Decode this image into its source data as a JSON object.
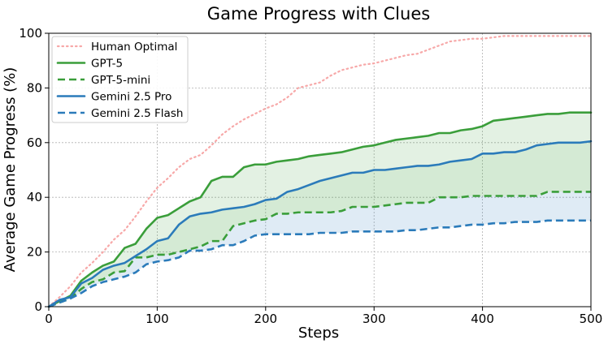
{
  "chart_data": {
    "type": "line",
    "title": "Game Progress with Clues",
    "xlabel": "Steps",
    "ylabel": "Average Game Progress (%)",
    "xlim": [
      0,
      500
    ],
    "ylim": [
      0,
      100
    ],
    "xticks": [
      0,
      100,
      200,
      300,
      400,
      500
    ],
    "yticks": [
      0,
      20,
      40,
      60,
      80,
      100
    ],
    "grid": true,
    "legend_position": "top-left",
    "x": [
      0,
      10,
      20,
      30,
      40,
      50,
      60,
      70,
      80,
      90,
      100,
      110,
      120,
      130,
      140,
      150,
      160,
      170,
      180,
      190,
      200,
      210,
      220,
      230,
      240,
      250,
      260,
      270,
      280,
      290,
      300,
      310,
      320,
      330,
      340,
      350,
      360,
      370,
      380,
      390,
      400,
      410,
      420,
      430,
      440,
      450,
      460,
      470,
      480,
      490,
      500
    ],
    "series": [
      {
        "name": "Human Optimal",
        "color": "#f7a8a8",
        "style": "dotted",
        "values": [
          0,
          3.5,
          7.5,
          12.5,
          16,
          20,
          24.5,
          28,
          33,
          38.5,
          43.5,
          47,
          51,
          54,
          55.5,
          59,
          63,
          66,
          68.5,
          70.5,
          72.5,
          74,
          76.5,
          80,
          81,
          82,
          84.5,
          86.5,
          87.5,
          88.5,
          89,
          90,
          91,
          92,
          92.5,
          94,
          95.5,
          97,
          97.5,
          98,
          98,
          98.5,
          99,
          99,
          99,
          99,
          99,
          99,
          99,
          99,
          99
        ]
      },
      {
        "name": "GPT-5",
        "color": "#3a9e3a",
        "style": "solid",
        "values": [
          0,
          2,
          4,
          9.5,
          12.5,
          15,
          16.5,
          21.5,
          23,
          28.5,
          32.5,
          33.5,
          36,
          38.5,
          40,
          46,
          47.5,
          47.5,
          51,
          52,
          52,
          53,
          53.5,
          54,
          55,
          55.5,
          56,
          56.5,
          57.5,
          58.5,
          59,
          60,
          61,
          61.5,
          62,
          62.5,
          63.5,
          63.5,
          64.5,
          65,
          66,
          68,
          68.5,
          69,
          69.5,
          70,
          70.5,
          70.5,
          71,
          71,
          71
        ]
      },
      {
        "name": "GPT-5-mini",
        "color": "#3a9e3a",
        "style": "dashed",
        "values": [
          0,
          1.5,
          3,
          6.5,
          9,
          10,
          12.5,
          13,
          18,
          18,
          19,
          19,
          20,
          21,
          22,
          24,
          24,
          29.5,
          30.5,
          31.5,
          32,
          34,
          34,
          34.5,
          34.5,
          34.5,
          34.5,
          35,
          36.5,
          36.5,
          36.5,
          37,
          37.5,
          38,
          38,
          38,
          40,
          40,
          40,
          40.5,
          40.5,
          40.5,
          40.5,
          40.5,
          40.5,
          40.5,
          42,
          42,
          42,
          42,
          42
        ]
      },
      {
        "name": "Gemini 2.5 Pro",
        "color": "#2b7bba",
        "style": "solid",
        "values": [
          0,
          2.5,
          3.5,
          8.5,
          10.5,
          13.5,
          15,
          16,
          18.5,
          21,
          24,
          25,
          30,
          33,
          34,
          34.5,
          35.5,
          36,
          36.5,
          37.5,
          39,
          39.5,
          42,
          43,
          44.5,
          46,
          47,
          48,
          49,
          49,
          50,
          50,
          50.5,
          51,
          51.5,
          51.5,
          52,
          53,
          53.5,
          54,
          56,
          56,
          56.5,
          56.5,
          57.5,
          59,
          59.5,
          60,
          60,
          60,
          60.5
        ]
      },
      {
        "name": "Gemini 2.5 Flash",
        "color": "#2b7bba",
        "style": "dashed",
        "values": [
          0,
          1.5,
          3,
          5,
          7.5,
          9,
          10,
          11,
          12.5,
          15.5,
          16.5,
          17,
          18,
          20.5,
          20.5,
          21,
          22.5,
          22.5,
          24,
          26,
          26.5,
          26.5,
          26.5,
          26.5,
          26.5,
          27,
          27,
          27,
          27.5,
          27.5,
          27.5,
          27.5,
          27.5,
          28,
          28,
          28.5,
          29,
          29,
          29.5,
          30,
          30,
          30.5,
          30.5,
          31,
          31,
          31,
          31.5,
          31.5,
          31.5,
          31.5,
          31.5
        ]
      }
    ],
    "fills": [
      {
        "between": [
          "GPT-5",
          "Gemini 2.5 Pro"
        ],
        "color": "#3a9e3a",
        "opacity": 0.14
      },
      {
        "between": [
          "Gemini 2.5 Pro",
          "GPT-5-mini"
        ],
        "color": "#3a9e3a",
        "opacity": 0.22
      },
      {
        "between": [
          "GPT-5-mini",
          "Gemini 2.5 Flash"
        ],
        "color": "#2b7bba",
        "opacity": 0.15
      }
    ]
  }
}
